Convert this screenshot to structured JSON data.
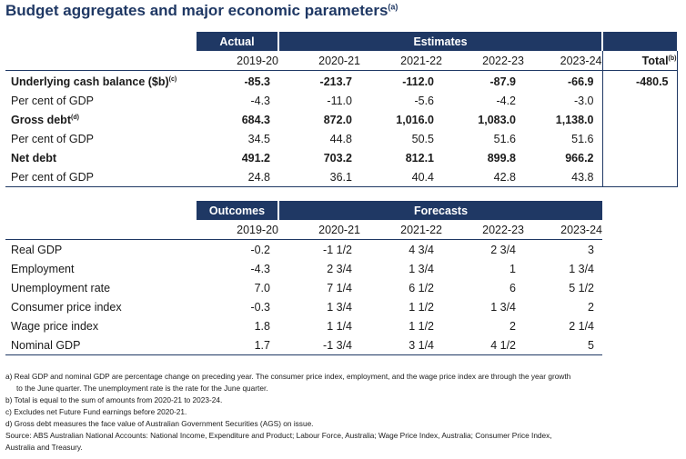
{
  "title": "Budget aggregates and major economic parameters",
  "title_note": "(a)",
  "table1": {
    "group_actual": "Actual",
    "group_estimates": "Estimates",
    "years": [
      "2019-20",
      "2020-21",
      "2021-22",
      "2022-23",
      "2023-24"
    ],
    "total_header": "Total",
    "total_note": "(b)",
    "rows": [
      {
        "label": "Underlying cash balance ($b)",
        "note": "(c)",
        "bold": true,
        "values": [
          "-85.3",
          "-213.7",
          "-112.0",
          "-87.9",
          "-66.9"
        ],
        "total": "-480.5"
      },
      {
        "label": "Per cent of GDP",
        "note": "",
        "bold": false,
        "values": [
          "-4.3",
          "-11.0",
          "-5.6",
          "-4.2",
          "-3.0"
        ],
        "total": ""
      },
      {
        "label": "Gross debt",
        "note": "(d)",
        "bold": true,
        "values": [
          "684.3",
          "872.0",
          "1,016.0",
          "1,083.0",
          "1,138.0"
        ],
        "total": ""
      },
      {
        "label": "Per cent of GDP",
        "note": "",
        "bold": false,
        "values": [
          "34.5",
          "44.8",
          "50.5",
          "51.6",
          "51.6"
        ],
        "total": ""
      },
      {
        "label": "Net debt",
        "note": "",
        "bold": true,
        "values": [
          "491.2",
          "703.2",
          "812.1",
          "899.8",
          "966.2"
        ],
        "total": ""
      },
      {
        "label": "Per cent of GDP",
        "note": "",
        "bold": false,
        "values": [
          "24.8",
          "36.1",
          "40.4",
          "42.8",
          "43.8"
        ],
        "total": ""
      }
    ]
  },
  "table2": {
    "group_outcomes": "Outcomes",
    "group_forecasts": "Forecasts",
    "years": [
      "2019-20",
      "2020-21",
      "2021-22",
      "2022-23",
      "2023-24"
    ],
    "rows": [
      {
        "label": "Real GDP",
        "values": [
          "-0.2",
          "-1 1/2",
          "4 3/4",
          "2 3/4",
          "3"
        ]
      },
      {
        "label": "Employment",
        "values": [
          "-4.3",
          "2 3/4",
          "1 3/4",
          "1",
          "1 3/4"
        ]
      },
      {
        "label": "Unemployment rate",
        "values": [
          "7.0",
          "7 1/4",
          "6 1/2",
          "6",
          "5 1/2"
        ]
      },
      {
        "label": "Consumer price index",
        "values": [
          "-0.3",
          "1 3/4",
          "1 1/2",
          "1 3/4",
          "2"
        ]
      },
      {
        "label": "Wage price index",
        "values": [
          "1.8",
          "1 1/4",
          "1 1/2",
          "2",
          "2 1/4"
        ]
      },
      {
        "label": "Nominal GDP",
        "values": [
          "1.7",
          "-1 3/4",
          "3 1/4",
          "4 1/2",
          "5"
        ]
      }
    ]
  },
  "notes": {
    "a": "a) Real GDP and nominal GDP are percentage change on preceding year. The consumer price index, employment, and the wage price index are through the year growth",
    "a_cont": "to the June quarter. The unemployment rate is the rate for the June quarter.",
    "b": "b) Total is equal to the sum of amounts from 2020-21 to 2023-24.",
    "c": "c) Excludes net Future Fund earnings before 2020-21.",
    "d": "d) Gross debt measures the face value of Australian Government Securities (AGS) on issue.",
    "source": "Source: ABS Australian National Accounts: National Income, Expenditure and Product; Labour Force, Australia; Wage Price Index, Australia; Consumer Price Index,",
    "source_cont": "Australia and Treasury."
  }
}
